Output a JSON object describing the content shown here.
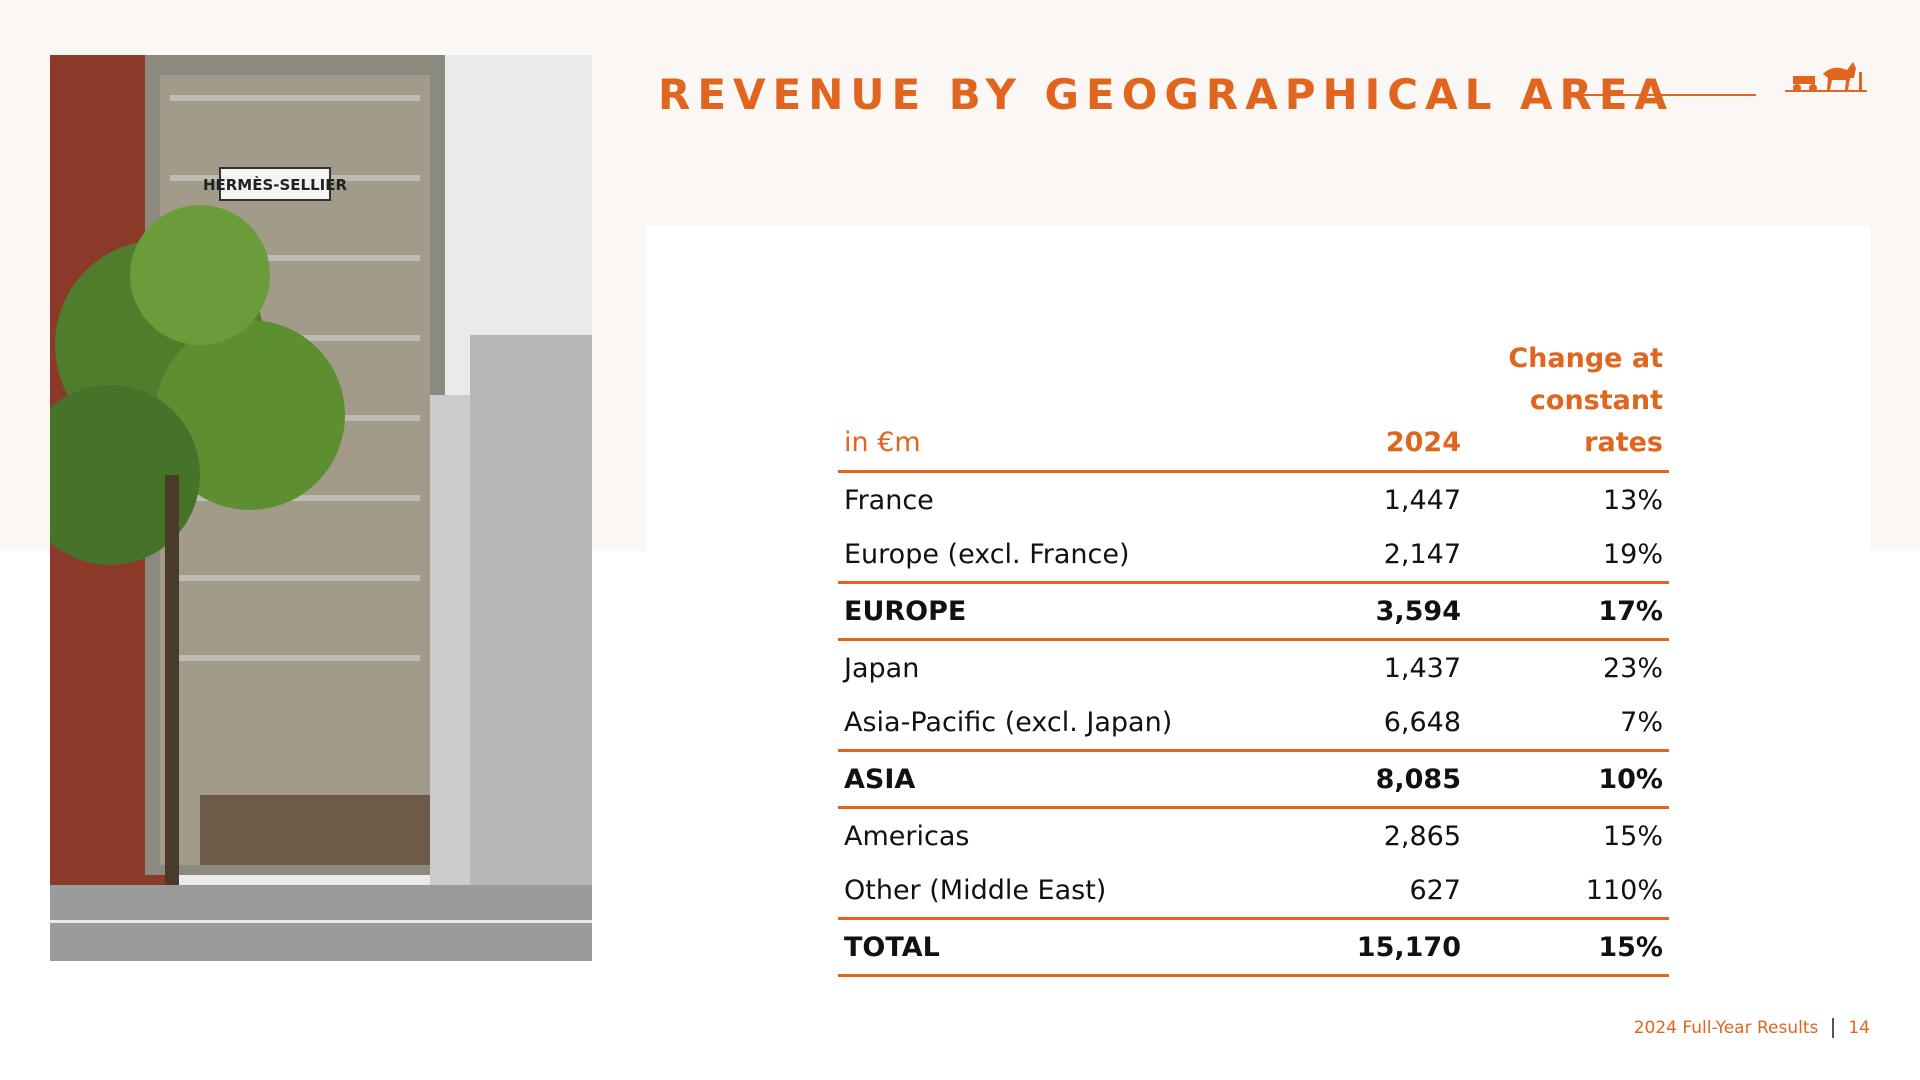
{
  "header": {
    "title": "REVENUE BY GEOGRAPHICAL AREA"
  },
  "photo": {
    "sign": "HERMÈS-SELLIER"
  },
  "table": {
    "columns": [
      "in €m",
      "2024",
      "Change at constant rates"
    ],
    "rows": [
      {
        "label": "France",
        "revenue": "1,447",
        "change": "13%",
        "total": false
      },
      {
        "label": "Europe (excl. France)",
        "revenue": "2,147",
        "change": "19%",
        "total": false
      },
      {
        "label": "EUROPE",
        "revenue": "3,594",
        "change": "17%",
        "total": true
      },
      {
        "label": "Japan",
        "revenue": "1,437",
        "change": "23%",
        "total": false
      },
      {
        "label": "Asia-Pacific (excl. Japan)",
        "revenue": "6,648",
        "change": "7%",
        "total": false
      },
      {
        "label": "ASIA",
        "revenue": "8,085",
        "change": "10%",
        "total": true
      },
      {
        "label": "Americas",
        "revenue": "2,865",
        "change": "15%",
        "total": false
      },
      {
        "label": "Other (Middle East)",
        "revenue": "627",
        "change": "110%",
        "total": false
      },
      {
        "label": "TOTAL",
        "revenue": "15,170",
        "change": "15%",
        "total": true
      }
    ]
  },
  "footer": {
    "text": "2024 Full-Year Results",
    "page": "14"
  }
}
